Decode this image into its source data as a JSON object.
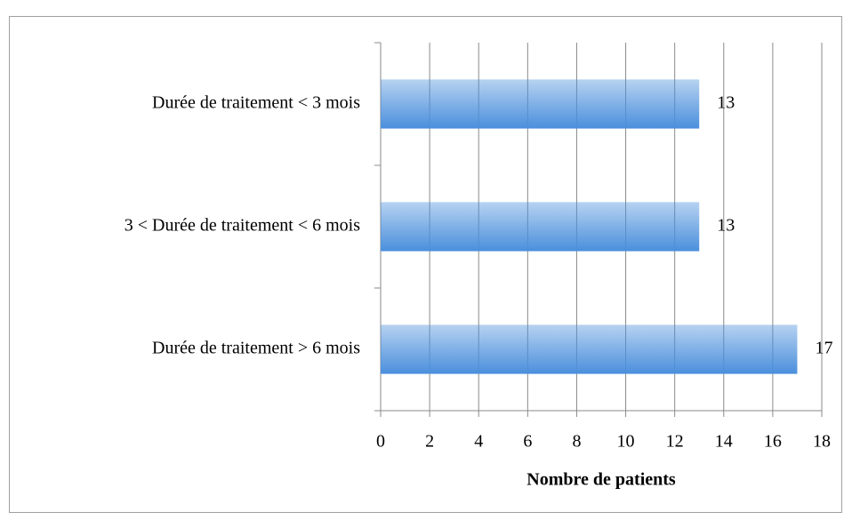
{
  "chart_data": {
    "type": "bar",
    "orientation": "horizontal",
    "categories": [
      "Durée de traitement < 3 mois",
      "3 < Durée de traitement < 6 mois",
      "Durée de traitement > 6 mois"
    ],
    "values": [
      13,
      13,
      17
    ],
    "color": "#4a8fdc",
    "xlabel": "Nombre de patients",
    "xlim": [
      0,
      18
    ],
    "xticks": [
      0,
      2,
      4,
      6,
      8,
      10,
      12,
      14,
      16,
      18
    ],
    "grid": true
  }
}
